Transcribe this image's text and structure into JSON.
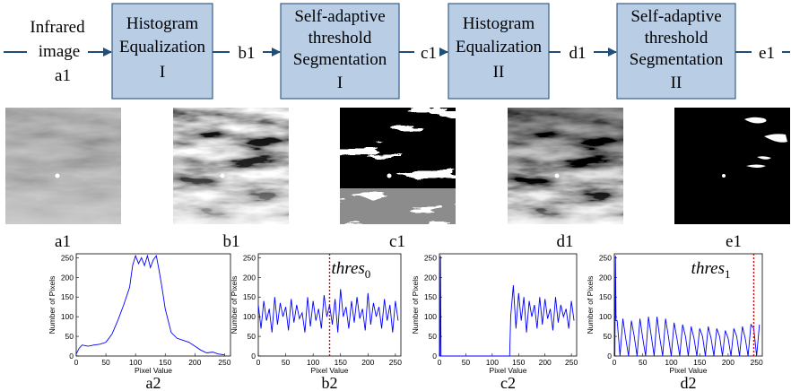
{
  "flow": {
    "input": [
      "Infrared",
      "image",
      "a1"
    ],
    "boxes": [
      {
        "lines": [
          "Histogram",
          "Equalization",
          "I"
        ]
      },
      {
        "lines": [
          "Self-adaptive",
          "threshold",
          "Segmentation",
          "I"
        ]
      },
      {
        "lines": [
          "Histogram",
          "Equalization",
          "II"
        ]
      },
      {
        "lines": [
          "Self-adaptive",
          "threshold",
          "Segmentation",
          "II"
        ]
      }
    ],
    "edges": [
      "b1",
      "c1",
      "d1",
      "e1"
    ]
  },
  "images": [
    {
      "label": "a1"
    },
    {
      "label": "b1"
    },
    {
      "label": "c1"
    },
    {
      "label": "d1"
    },
    {
      "label": "e1"
    }
  ],
  "histograms": [
    {
      "caption": "a2",
      "color": "#0000ff",
      "xlabel": "Pixel Value",
      "ylabel": "Number of Pixels",
      "xlim": [
        0,
        260
      ],
      "ylim": [
        0,
        260
      ],
      "xticks": [
        0,
        50,
        100,
        150,
        200,
        250
      ],
      "yticks": [
        0,
        50,
        100,
        150,
        200,
        250
      ],
      "x": [
        0,
        5,
        10,
        20,
        30,
        40,
        50,
        60,
        70,
        80,
        90,
        95,
        100,
        105,
        110,
        115,
        120,
        125,
        130,
        135,
        140,
        145,
        150,
        160,
        170,
        180,
        190,
        200,
        210,
        220,
        230,
        240,
        250
      ],
      "y": [
        5,
        20,
        28,
        25,
        28,
        30,
        35,
        55,
        90,
        130,
        175,
        230,
        255,
        235,
        250,
        230,
        255,
        225,
        245,
        255,
        215,
        170,
        120,
        60,
        45,
        40,
        35,
        25,
        15,
        8,
        10,
        5,
        3
      ]
    },
    {
      "caption": "b2",
      "color": "#0000ff",
      "xlabel": "Pixel Value",
      "ylabel": "Number of Pixels",
      "xlim": [
        0,
        260
      ],
      "ylim": [
        0,
        260
      ],
      "xticks": [
        0,
        50,
        100,
        150,
        200,
        250
      ],
      "yticks": [
        0,
        50,
        100,
        150,
        200,
        250
      ],
      "x": [
        0,
        5,
        10,
        15,
        20,
        25,
        30,
        35,
        40,
        45,
        50,
        55,
        60,
        65,
        70,
        75,
        80,
        85,
        90,
        95,
        100,
        105,
        110,
        115,
        120,
        125,
        130,
        135,
        140,
        145,
        150,
        155,
        160,
        165,
        170,
        175,
        180,
        185,
        190,
        195,
        200,
        205,
        210,
        215,
        220,
        225,
        230,
        235,
        240,
        245,
        250,
        255
      ],
      "y": [
        130,
        70,
        140,
        90,
        120,
        60,
        150,
        80,
        135,
        100,
        125,
        65,
        145,
        85,
        130,
        95,
        110,
        60,
        150,
        75,
        140,
        90,
        120,
        70,
        155,
        100,
        130,
        80,
        145,
        60,
        170,
        100,
        125,
        70,
        140,
        85,
        150,
        95,
        120,
        65,
        160,
        80,
        135,
        100,
        125,
        70,
        145,
        90,
        130,
        60,
        140,
        90
      ],
      "threshold": {
        "x": 130,
        "text": "thres",
        "sub": "0",
        "color": "#dd0000"
      }
    },
    {
      "caption": "c2",
      "color": "#0000ff",
      "xlabel": "Pixel Value",
      "ylabel": "Number of Pixels",
      "xlim": [
        0,
        260
      ],
      "ylim": [
        0,
        260
      ],
      "xticks": [
        0,
        50,
        100,
        150,
        200,
        250
      ],
      "yticks": [
        0,
        50,
        100,
        150,
        200,
        250
      ],
      "x": [
        1,
        2,
        3,
        133,
        135,
        140,
        145,
        150,
        155,
        160,
        165,
        170,
        175,
        180,
        185,
        190,
        195,
        200,
        205,
        210,
        215,
        220,
        225,
        230,
        235,
        240,
        245,
        250,
        255
      ],
      "y": [
        0,
        255,
        0,
        0,
        100,
        180,
        70,
        160,
        90,
        150,
        60,
        140,
        100,
        130,
        70,
        150,
        80,
        145,
        95,
        120,
        65,
        150,
        85,
        130,
        100,
        120,
        70,
        140,
        90
      ]
    },
    {
      "caption": "d2",
      "color": "#0000ff",
      "xlabel": "Pixel Value",
      "ylabel": "Number of Pixels",
      "xlim": [
        0,
        260
      ],
      "ylim": [
        0,
        260
      ],
      "xticks": [
        0,
        50,
        100,
        150,
        200,
        250
      ],
      "yticks": [
        0,
        50,
        100,
        150,
        200,
        250
      ],
      "x": [
        1,
        2,
        3,
        5,
        10,
        15,
        20,
        25,
        30,
        35,
        40,
        45,
        50,
        55,
        60,
        65,
        70,
        75,
        80,
        85,
        90,
        95,
        100,
        105,
        110,
        115,
        120,
        125,
        130,
        135,
        140,
        145,
        150,
        155,
        160,
        165,
        170,
        175,
        180,
        185,
        190,
        195,
        200,
        205,
        210,
        215,
        220,
        225,
        230,
        235,
        240,
        245,
        250,
        255
      ],
      "y": [
        0,
        255,
        90,
        90,
        0,
        95,
        45,
        0,
        90,
        50,
        0,
        95,
        45,
        0,
        100,
        50,
        0,
        100,
        45,
        0,
        95,
        50,
        0,
        85,
        45,
        0,
        80,
        50,
        0,
        75,
        45,
        0,
        70,
        50,
        0,
        75,
        45,
        0,
        70,
        50,
        0,
        65,
        45,
        0,
        70,
        50,
        0,
        75,
        45,
        0,
        80,
        70,
        0,
        80
      ],
      "threshold": {
        "x": 245,
        "text": "thres",
        "sub": "1",
        "color": "#dd0000"
      }
    }
  ]
}
